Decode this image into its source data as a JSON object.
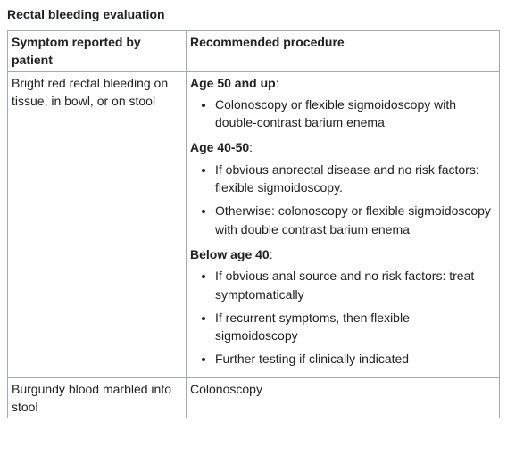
{
  "title": "Rectal bleeding evaluation",
  "columns": {
    "symptom": "Symptom reported by patient",
    "procedure": "Recommended procedure"
  },
  "rows": [
    {
      "symptom": "Bright red rectal bleeding on tissue, in bowl, or on stool",
      "groups": [
        {
          "label": "Age 50 and up",
          "items": [
            "Colonoscopy or flexible sigmoidoscopy with double-contrast barium enema"
          ]
        },
        {
          "label": "Age 40-50",
          "items": [
            "If obvious anorectal disease and no risk factors: flexible sigmoidoscopy.",
            "Otherwise: colonoscopy or flexible sigmoidoscopy with double contrast barium enema"
          ]
        },
        {
          "label": "Below age 40",
          "items": [
            "If obvious anal source and no risk factors: treat symptomatically",
            "If recurrent symptoms, then flexible sigmoidoscopy",
            "Further testing if clinically indicated"
          ]
        }
      ]
    },
    {
      "symptom": "Burgundy blood marbled into stool",
      "plain": "Colonoscopy"
    }
  ],
  "colors": {
    "text": "#202122",
    "border": "#a2a9b1",
    "background": "#ffffff"
  }
}
